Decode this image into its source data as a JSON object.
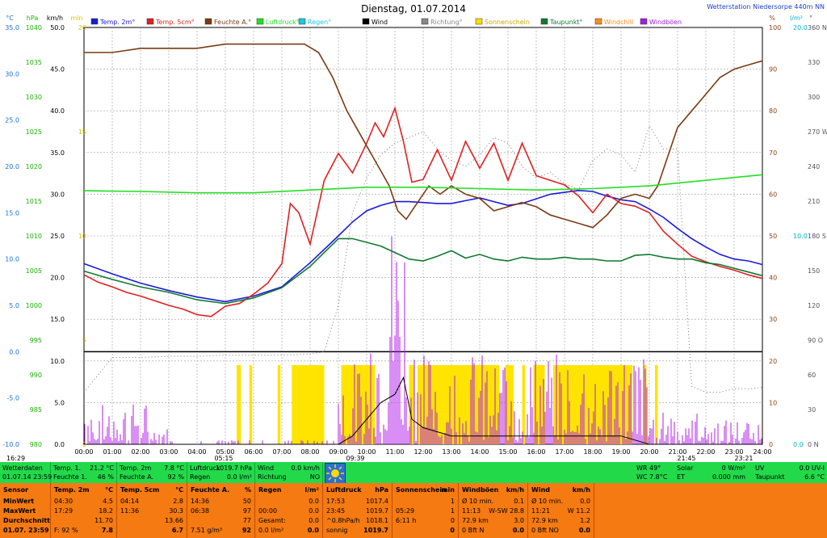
{
  "chart_data": {
    "type": "line",
    "title": "Dienstag, 01.07.2014",
    "station": "Wetterstation Niedersorpe 440m NN",
    "x_tick_labels": [
      "00:00",
      "01:00",
      "02:00",
      "03:00",
      "04:00",
      "05:00",
      "06:00",
      "07:00",
      "08:00",
      "09:00",
      "10:00",
      "11:00",
      "12:00",
      "13:00",
      "14:00",
      "15:00",
      "16:00",
      "17:00",
      "18:00",
      "19:00",
      "20:00",
      "21:00",
      "22:00",
      "23:00",
      "24:00"
    ],
    "x_range_hours": [
      0,
      24
    ],
    "sun_markers": [
      "05:15",
      "09:39",
      "21:45",
      "23:21"
    ],
    "corner_time": "16:29",
    "axes_left": [
      {
        "unit": "°C",
        "color": "#1a6edb",
        "range": [
          -10,
          35
        ],
        "ticks": [
          "35.0",
          "30.0",
          "25.0",
          "20.0",
          "15.0",
          "10.0",
          "5.0",
          "0.0",
          "-5.0",
          "-10.0"
        ]
      },
      {
        "unit": "hPa",
        "color": "#19b000",
        "range": [
          980,
          1040
        ],
        "ticks": [
          "1040",
          "1035",
          "1030",
          "1025",
          "1020",
          "1015",
          "1010",
          "1005",
          "1000",
          "995",
          "990",
          "985",
          "980"
        ]
      },
      {
        "unit": "km/h",
        "color": "#000000",
        "range": [
          0,
          50
        ],
        "ticks": [
          "50.0",
          "45.0",
          "40.0",
          "35.0",
          "30.0",
          "25.0",
          "20.0",
          "15.0",
          "10.0",
          "5.0",
          "0.0"
        ]
      },
      {
        "unit": "min",
        "color": "#d9c200",
        "range": [
          0,
          20
        ],
        "ticks": [
          "20",
          "15",
          "10",
          "5",
          "0"
        ]
      }
    ],
    "axes_right": [
      {
        "unit": "%",
        "color": "#8b4513",
        "range": [
          0,
          100
        ],
        "ticks": [
          "100",
          "90",
          "80",
          "70",
          "60",
          "50",
          "40",
          "30",
          "20",
          "10",
          "0"
        ]
      },
      {
        "unit": "l/m²",
        "color": "#00b0d0",
        "range": [
          0,
          20
        ],
        "ticks": [
          "20.0",
          "10.0",
          "0.0"
        ]
      },
      {
        "unit": "°",
        "color": "#555555",
        "range": [
          0,
          360
        ],
        "ticks": [
          "360 N",
          "330",
          "300",
          "270 W",
          "240",
          "210",
          "180 S",
          "150",
          "120",
          "90 O",
          "60",
          "30",
          "0 N"
        ]
      }
    ],
    "legend": [
      {
        "name": "Temp. 2m°",
        "color": "#1a1adb"
      },
      {
        "name": "Temp. 5cm°",
        "color": "#e02020"
      },
      {
        "name": "Feuchte A.°",
        "color": "#7a3b12"
      },
      {
        "name": "Luftdruck°",
        "color": "#22e022"
      },
      {
        "name": "Regen°",
        "color": "#1ac8e0"
      },
      {
        "name": "Wind",
        "color": "#000000"
      },
      {
        "name": "Richtung°",
        "color": "#888888"
      },
      {
        "name": "Sonnenschein",
        "color": "#ffe000"
      },
      {
        "name": "Taupunkt°",
        "color": "#107a30"
      },
      {
        "name": "Windchill",
        "color": "#ff8c1a"
      },
      {
        "name": "Windböen",
        "color": "#a020e0"
      }
    ],
    "series": [
      {
        "name": "Temp. 2m°",
        "axis": "°C",
        "x": [
          0,
          1,
          2,
          3,
          4,
          5,
          6,
          7,
          8,
          9,
          9.5,
          10,
          10.5,
          11,
          11.5,
          12,
          12.5,
          13,
          13.5,
          14,
          14.5,
          15,
          15.5,
          16,
          16.5,
          17,
          17.5,
          18,
          18.5,
          19,
          19.5,
          20,
          20.5,
          21,
          21.5,
          22,
          22.5,
          23,
          23.5,
          24
        ],
        "y": [
          9.5,
          8.4,
          7.4,
          6.6,
          5.9,
          5.4,
          6.0,
          7.0,
          9.6,
          12.5,
          14.0,
          15.2,
          15.8,
          16.2,
          16.2,
          16.1,
          16.0,
          16.0,
          16.3,
          16.6,
          16.2,
          15.8,
          16.0,
          16.5,
          17.0,
          17.2,
          17.4,
          17.3,
          16.8,
          16.4,
          16.2,
          15.4,
          14.5,
          13.3,
          12.2,
          11.3,
          10.5,
          10.0,
          9.8,
          9.4
        ]
      },
      {
        "name": "Temp. 5cm°",
        "axis": "°C",
        "x": [
          0,
          0.5,
          1,
          1.5,
          2,
          2.5,
          3,
          3.5,
          4,
          4.5,
          5,
          5.5,
          6,
          6.5,
          7,
          7.3,
          7.6,
          8,
          8.5,
          9,
          9.5,
          10,
          10.3,
          10.6,
          11,
          11.3,
          11.6,
          12,
          12.5,
          13,
          13.5,
          14,
          14.5,
          15,
          15.5,
          16,
          16.5,
          17,
          17.5,
          18,
          18.5,
          19,
          19.5,
          20,
          20.5,
          21,
          21.5,
          22,
          22.5,
          23,
          23.5,
          24
        ],
        "y": [
          8.3,
          7.5,
          7.0,
          6.4,
          6.0,
          5.5,
          5.0,
          4.6,
          4.0,
          3.8,
          4.9,
          5.2,
          6.2,
          7.4,
          9.5,
          16.0,
          15.0,
          11.6,
          18.5,
          21.4,
          19.3,
          22.5,
          24.7,
          23.2,
          26.3,
          22.7,
          18.3,
          18.6,
          21.8,
          18.5,
          22.7,
          19.8,
          22.5,
          18.5,
          22.5,
          19.0,
          18.5,
          18.0,
          16.8,
          15.0,
          17.0,
          16.0,
          15.7,
          15.0,
          13.0,
          11.6,
          10.3,
          9.7,
          9.2,
          8.8,
          8.3,
          7.9
        ]
      },
      {
        "name": "Feuchte A.°",
        "axis": "%",
        "x": [
          0,
          1,
          2,
          3,
          4,
          5,
          6,
          7,
          7.8,
          8.3,
          8.8,
          9.3,
          9.8,
          10.3,
          10.8,
          11.1,
          11.4,
          11.8,
          12.2,
          12.6,
          13,
          13.5,
          14,
          14.5,
          15,
          15.5,
          16,
          16.5,
          17,
          17.5,
          18,
          18.5,
          19,
          19.5,
          20,
          20.3,
          20.6,
          21,
          21.5,
          22,
          22.5,
          23,
          23.5,
          24
        ],
        "y": [
          94,
          94,
          95,
          95,
          95,
          96,
          96,
          96,
          96,
          94,
          88,
          80,
          74,
          68,
          62,
          56,
          54,
          58,
          62,
          60,
          62,
          60,
          59,
          56,
          57,
          58,
          57,
          55,
          54,
          53,
          52,
          55,
          59,
          60,
          59,
          62,
          68,
          76,
          80,
          84,
          88,
          90,
          91,
          92
        ]
      },
      {
        "name": "Luftdruck°",
        "axis": "hPa",
        "x": [
          0,
          2,
          4,
          6,
          8,
          10,
          12,
          14,
          16,
          18,
          20,
          22,
          24
        ],
        "y": [
          1016.5,
          1016.4,
          1016.2,
          1016.2,
          1016.6,
          1017.0,
          1017.0,
          1016.8,
          1016.6,
          1016.8,
          1017.2,
          1018.0,
          1018.8
        ]
      },
      {
        "name": "Taupunkt°",
        "axis": "°C",
        "x": [
          0,
          1,
          2,
          3,
          4,
          5,
          6,
          7,
          8,
          8.5,
          9,
          9.5,
          10,
          10.5,
          11,
          11.5,
          12,
          12.5,
          13,
          13.5,
          14,
          14.5,
          15,
          15.5,
          16,
          16.5,
          17,
          17.5,
          18,
          18.5,
          19,
          19.5,
          20,
          20.5,
          21,
          21.5,
          22,
          22.5,
          23,
          23.5,
          24
        ],
        "y": [
          8.7,
          7.8,
          7.0,
          6.4,
          5.6,
          5.2,
          5.8,
          6.9,
          9.2,
          10.7,
          12.2,
          12.2,
          11.8,
          11.4,
          10.7,
          10.0,
          9.8,
          10.3,
          10.9,
          10.1,
          10.5,
          10.0,
          9.8,
          10.2,
          10.0,
          10.0,
          10.2,
          10.0,
          10.0,
          9.8,
          9.8,
          10.4,
          10.5,
          10.2,
          10.0,
          10.0,
          9.6,
          9.4,
          9.0,
          8.6,
          8.2
        ]
      },
      {
        "name": "Wind",
        "axis": "km/h",
        "x": [
          0,
          9,
          9.5,
          10,
          10.5,
          11,
          11.3,
          11.6,
          12,
          13,
          14,
          15,
          16,
          17,
          18,
          19,
          20,
          21,
          22,
          23,
          24
        ],
        "y": [
          0,
          0,
          1,
          3,
          5,
          6,
          8,
          3,
          2,
          1,
          1,
          1,
          1,
          1,
          1,
          1,
          0,
          0,
          0,
          0,
          0
        ]
      },
      {
        "name": "Richtung°",
        "axis": "°",
        "x": [
          0,
          1,
          2,
          3,
          4,
          5,
          6,
          7,
          8,
          8.5,
          9,
          9.5,
          10,
          10.5,
          11,
          11.5,
          12,
          12.5,
          13,
          13.5,
          14,
          14.5,
          15,
          15.5,
          16,
          16.5,
          17,
          17.5,
          18,
          18.5,
          19,
          19.5,
          20,
          20.5,
          21,
          21.5,
          22,
          22.5,
          23,
          23.5,
          24
        ],
        "y": [
          45,
          75,
          75,
          76,
          76,
          77,
          77,
          77,
          78,
          80,
          120,
          200,
          230,
          250,
          260,
          265,
          270,
          255,
          245,
          240,
          250,
          265,
          260,
          240,
          230,
          235,
          225,
          220,
          245,
          255,
          250,
          235,
          275,
          255,
          255,
          50,
          45,
          45,
          48,
          48,
          49
        ]
      }
    ],
    "windboen_peak_kmh": 28.8
  },
  "status": {
    "wetterdaten_label": "Wetterdaten",
    "wetterdaten_time": "01.07.14 23:59",
    "temp1": "Temp. 1.",
    "temp1_val": "21.2 °C",
    "feuchte1": "Feuchte 1.",
    "feuchte1_val": "46 %",
    "temp2m": "Temp. 2m",
    "temp2m_val": "7.8 °C",
    "feuchteA": "Feuchte A.",
    "feuchteA_val": "92 %",
    "luftdruck": "Luftdruck",
    "luftdruck_val": "1019.7 hPa",
    "regen": "Regen",
    "regen_val": "0.0 l/m²",
    "wind": "Wind",
    "wind_val": "0.0 km/h",
    "richtung": "Richtung",
    "richtung_val": "NO",
    "wr": "WR 49°",
    "wc": "WC 7.8°C",
    "solar": "Solar",
    "solar_val": "0 W/m²",
    "et": "ET",
    "et_val": "0.000 mm",
    "uv": "UV",
    "uv_val": "0.0 UV-I",
    "taupunkt": "Taupunkt",
    "taupunkt_val": "6.6 °C"
  },
  "stats": {
    "sensor": {
      "h": "Sensor",
      "r": [
        "MinWert",
        "MaxWert",
        "Durchschnitt",
        "01.07. 23:59"
      ]
    },
    "temp2m": {
      "h": "Temp. 2m",
      "u": "°C",
      "r": [
        [
          "04:30",
          "4.5"
        ],
        [
          "17:29",
          "18.2"
        ],
        [
          "",
          "11.70"
        ],
        [
          "F: 92 %",
          "7.8"
        ]
      ]
    },
    "temp5cm": {
      "h": "Temp. 5cm",
      "u": "°C",
      "r": [
        [
          "04:14",
          "2.8"
        ],
        [
          "11:36",
          "30.3"
        ],
        [
          "",
          "13.66"
        ],
        [
          "",
          "6.7"
        ]
      ]
    },
    "feuchte": {
      "h": "Feuchte A.",
      "u": "%",
      "r": [
        [
          "14:36",
          "50"
        ],
        [
          "06:38",
          "97"
        ],
        [
          "",
          "77"
        ],
        [
          "7.51 g/m³",
          "92"
        ]
      ]
    },
    "regen": {
      "h": "Regen",
      "u": "l/m²",
      "r": [
        [
          "",
          "0.0"
        ],
        [
          "00:00",
          "0.0"
        ],
        [
          "Gesamt:",
          "0.0"
        ],
        [
          "0.0 l/m²",
          "0.0"
        ]
      ]
    },
    "luftdruck": {
      "h": "Luftdruck",
      "u": "hPa",
      "r": [
        [
          "17:53",
          "1017.4"
        ],
        [
          "23:45",
          "1019.7"
        ],
        [
          "^0.8hPa/h",
          "1018.1"
        ],
        [
          "sonnig",
          "1019.7"
        ]
      ]
    },
    "sonne": {
      "h": "Sonnenschein",
      "u": "min",
      "r": [
        [
          "",
          "1"
        ],
        [
          "05:29",
          "1"
        ],
        [
          "6:11 h",
          "0"
        ],
        [
          "",
          "0"
        ]
      ]
    },
    "windboen": {
      "h": "Windböen",
      "u": "km/h",
      "r": [
        [
          "Ø 10 min.",
          "0.1"
        ],
        [
          "11:13",
          "W-SW 28.8"
        ],
        [
          "72.9 km",
          "3.0"
        ],
        [
          "0 Bft N",
          "0.0"
        ]
      ]
    },
    "windmax": {
      "h": "Wind",
      "u": "km/h",
      "r": [
        [
          "Ø 10 min.",
          "0.0"
        ],
        [
          "11:21",
          "W 11.2"
        ],
        [
          "72.9 km",
          "1.2"
        ],
        [
          "0 Bft NO",
          "0.0"
        ]
      ]
    }
  }
}
